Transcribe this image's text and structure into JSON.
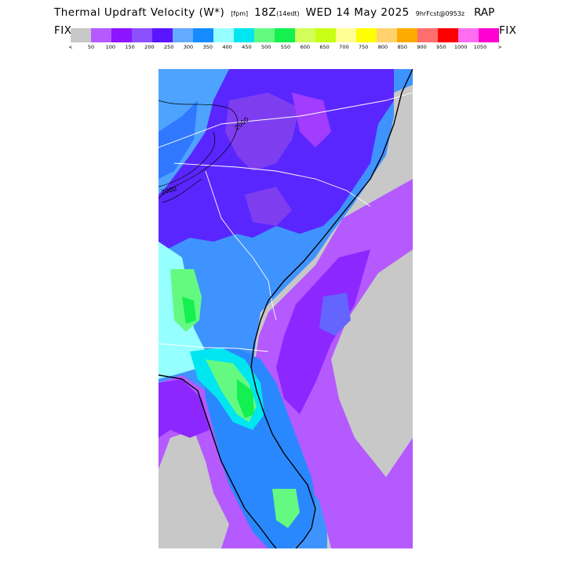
{
  "header": {
    "title": "Thermal Updraft Velocity (W*)",
    "units": "[fpm]",
    "valid": "18Z",
    "local_time": "(14edt)",
    "date": "WED 14 May 2025",
    "forecast": "9hrFcst@0953z",
    "model": "RAP"
  },
  "legend": {
    "fix_left": "FIX",
    "fix_right": "FIX",
    "less_than": "<",
    "greater_than": ">",
    "ticks": [
      "50",
      "100",
      "150",
      "200",
      "250",
      "300",
      "350",
      "400",
      "450",
      "500",
      "550",
      "600",
      "650",
      "700",
      "750",
      "800",
      "850",
      "900",
      "950",
      "1000",
      "1050"
    ],
    "colors": [
      "#c8c8c8",
      "#b45aff",
      "#8c14ff",
      "#8c50ff",
      "#5a14ff",
      "#64aaff",
      "#148cff",
      "#96ffff",
      "#00e6f0",
      "#64fa82",
      "#14f050",
      "#d2ff5a",
      "#c8ff14",
      "#ffff96",
      "#ffff00",
      "#ffd26e",
      "#ffaa00",
      "#ff6e6e",
      "#ff0000",
      "#ff6ef0",
      "#ff00d2"
    ]
  },
  "map": {
    "contour_label": "2000",
    "contour_label_2": "2000"
  }
}
